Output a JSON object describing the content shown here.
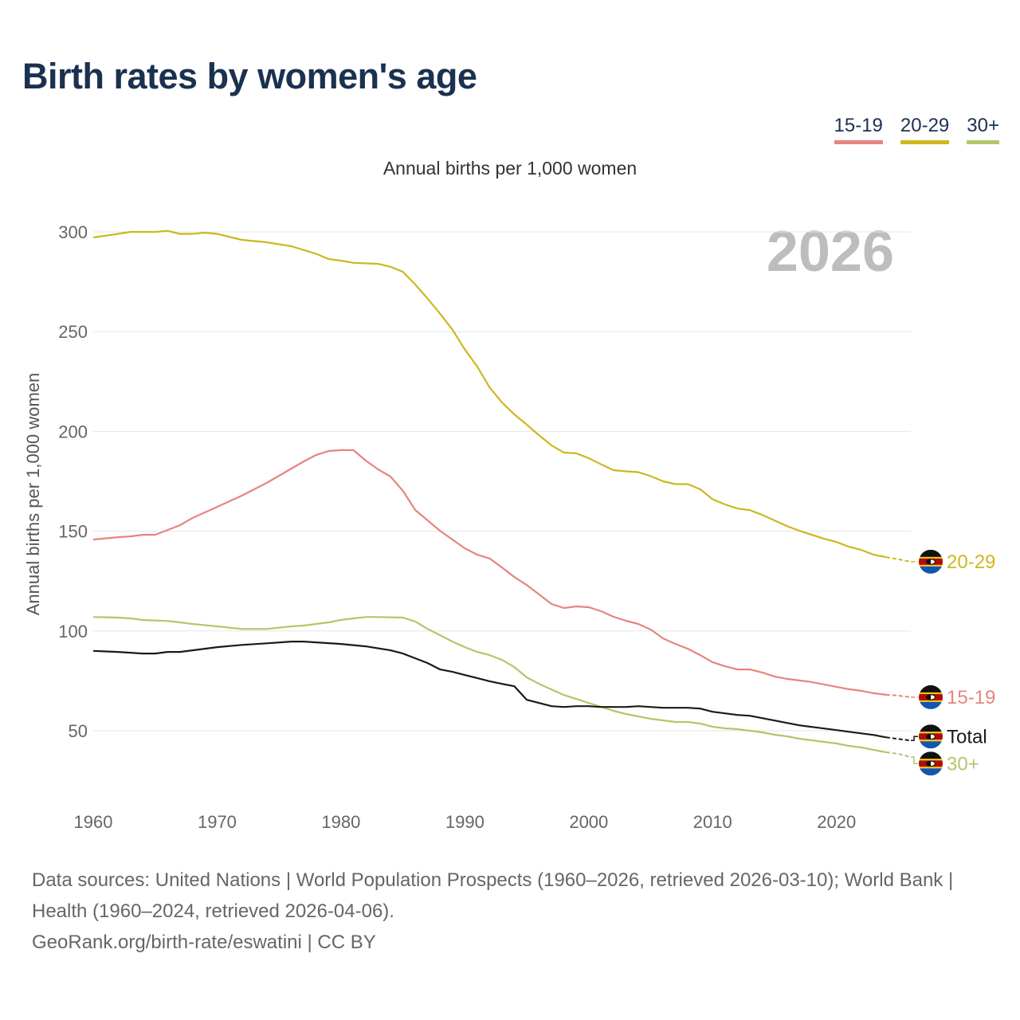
{
  "title": "Birth rates by women's age",
  "footer": {
    "sources": "Data sources: United Nations | World Population Prospects (1960–2026, retrieved 2026-03-10); World Bank | Health (1960–2024, retrieved 2026-04-06).",
    "credit": "GeoRank.org/birth-rate/eswatini | CC BY"
  },
  "chart_data": {
    "type": "line",
    "title": "Birth rates by women's age",
    "subtitle": "Annual births per 1,000 women",
    "xlabel": "",
    "ylabel": "Annual births per 1,000 women",
    "year_label": "2026",
    "xlim": [
      1960,
      2026
    ],
    "ylim": [
      25,
      310
    ],
    "xticks": [
      1960,
      1970,
      1980,
      1990,
      2000,
      2010,
      2020
    ],
    "yticks": [
      50,
      100,
      150,
      200,
      250,
      300
    ],
    "grid": true,
    "legend_position": "top-right",
    "projection_start": 2024,
    "end_marker": "eswatini-flag-icon",
    "series": [
      {
        "name": "15-19",
        "legend": true,
        "color": "#e8847f",
        "x": [
          1960,
          1962,
          1963,
          1964,
          1965,
          1966,
          1967,
          1968,
          1969,
          1970,
          1971,
          1972,
          1973,
          1974,
          1975,
          1976,
          1977,
          1978,
          1979,
          1980,
          1981,
          1982,
          1983,
          1984,
          1985,
          1986,
          1987,
          1988,
          1989,
          1990,
          1991,
          1992,
          1993,
          1994,
          1995,
          1996,
          1997,
          1998,
          1999,
          2000,
          2001,
          2002,
          2003,
          2004,
          2005,
          2006,
          2007,
          2008,
          2009,
          2010,
          2011,
          2012,
          2013,
          2014,
          2015,
          2016,
          2017,
          2018,
          2019,
          2020,
          2021,
          2022,
          2023,
          2024,
          2025,
          2026
        ],
        "y": [
          145.8,
          147,
          147.4,
          148.2,
          148.2,
          150.6,
          153,
          156.6,
          159.4,
          162.2,
          165,
          167.8,
          171,
          174.2,
          177.8,
          181.4,
          185,
          188.2,
          190.2,
          190.6,
          190.6,
          185.4,
          181,
          177.4,
          170.2,
          160.6,
          155.4,
          150.2,
          145.8,
          141.4,
          138.2,
          136.3,
          131.8,
          127,
          123,
          118.3,
          113.5,
          111.5,
          112.3,
          111.9,
          109.9,
          107.1,
          105.1,
          103.5,
          100.7,
          96.3,
          93.5,
          91.1,
          87.9,
          84.3,
          82.3,
          80.7,
          80.7,
          79.2,
          77.2,
          76,
          75.2,
          74.4,
          73.2,
          72,
          70.8,
          70,
          68.8,
          68,
          67.6,
          66.8
        ]
      },
      {
        "name": "20-29",
        "legend": true,
        "color": "#cdb81e",
        "x": [
          1960,
          1962,
          1963,
          1965,
          1966,
          1967,
          1968,
          1969,
          1970,
          1972,
          1974,
          1976,
          1978,
          1979,
          1980,
          1981,
          1983,
          1984,
          1985,
          1986,
          1987,
          1988,
          1989,
          1990,
          1991,
          1992,
          1993,
          1994,
          1995,
          1996,
          1997,
          1998,
          1999,
          2000,
          2001,
          2002,
          2003,
          2004,
          2005,
          2006,
          2007,
          2008,
          2009,
          2010,
          2011,
          2012,
          2013,
          2014,
          2015,
          2016,
          2017,
          2018,
          2019,
          2020,
          2021,
          2022,
          2023,
          2024,
          2025,
          2026
        ],
        "y": [
          297.2,
          299,
          300,
          300,
          300.5,
          299,
          299,
          299.6,
          299,
          296,
          294.8,
          292.8,
          289,
          286.4,
          285.6,
          284.5,
          284,
          282.5,
          280,
          273.6,
          266.5,
          259,
          251,
          241,
          232.5,
          222,
          214.5,
          208.5,
          203.4,
          198,
          193,
          189.4,
          189,
          186.6,
          183.5,
          180.6,
          180,
          179.6,
          177.6,
          175,
          173.6,
          173.6,
          171,
          166,
          163.4,
          161.4,
          160.6,
          158.2,
          155.4,
          152.6,
          150.2,
          148.2,
          146.2,
          144.6,
          142.2,
          140.6,
          138.2,
          137,
          135.9,
          134.7
        ]
      },
      {
        "name": "30+",
        "legend": true,
        "color": "#b3c66a",
        "x": [
          1960,
          1962,
          1963,
          1964,
          1966,
          1967,
          1968,
          1970,
          1972,
          1974,
          1976,
          1977,
          1978,
          1979,
          1980,
          1981,
          1982,
          1983,
          1985,
          1986,
          1987,
          1988,
          1989,
          1990,
          1991,
          1992,
          1993,
          1994,
          1995,
          1996,
          1997,
          1998,
          1999,
          2000,
          2001,
          2002,
          2003,
          2004,
          2005,
          2006,
          2007,
          2008,
          2009,
          2010,
          2011,
          2012,
          2013,
          2014,
          2015,
          2016,
          2017,
          2018,
          2019,
          2020,
          2021,
          2022,
          2023,
          2024,
          2025,
          2026
        ],
        "y": [
          107,
          106.7,
          106.3,
          105.5,
          105,
          104.3,
          103.5,
          102.3,
          101,
          101,
          102.3,
          102.7,
          103.5,
          104.3,
          105.5,
          106.3,
          107,
          107,
          106.7,
          104.7,
          101,
          97.9,
          94.7,
          91.9,
          89.5,
          87.9,
          85.5,
          81.9,
          76.7,
          73.5,
          70.7,
          67.9,
          65.9,
          63.9,
          62,
          60,
          58.4,
          57.2,
          56,
          55.2,
          54.4,
          54.4,
          53.6,
          52,
          51.2,
          50.8,
          50,
          49.2,
          48,
          47.2,
          46,
          45.2,
          44.4,
          43.6,
          42.4,
          41.6,
          40.4,
          39.2,
          38.4,
          36.8
        ]
      },
      {
        "name": "Total",
        "legend": false,
        "color": "#1a1a1a",
        "x": [
          1960,
          1962,
          1964,
          1965,
          1966,
          1967,
          1968,
          1969,
          1970,
          1972,
          1974,
          1976,
          1977,
          1978,
          1980,
          1982,
          1984,
          1985,
          1986,
          1987,
          1988,
          1989,
          1990,
          1991,
          1992,
          1993,
          1994,
          1995,
          1996,
          1997,
          1998,
          1999,
          2000,
          2001,
          2002,
          2003,
          2004,
          2005,
          2006,
          2007,
          2008,
          2009,
          2010,
          2011,
          2012,
          2013,
          2014,
          2015,
          2016,
          2017,
          2018,
          2019,
          2020,
          2021,
          2022,
          2023,
          2024,
          2025,
          2026
        ],
        "y": [
          90,
          89.5,
          88.7,
          88.7,
          89.5,
          89.5,
          90.3,
          91.1,
          91.9,
          93,
          93.8,
          94.7,
          94.7,
          94.3,
          93.5,
          92.3,
          90.3,
          88.7,
          86.3,
          83.9,
          80.7,
          79.5,
          77.9,
          76.4,
          74.8,
          73.5,
          72.3,
          65.5,
          63.9,
          62.3,
          61.9,
          62.3,
          62.3,
          61.9,
          61.9,
          61.9,
          62.3,
          61.9,
          61.5,
          61.5,
          61.5,
          61.1,
          59.5,
          58.7,
          57.9,
          57.5,
          56.3,
          55.1,
          53.9,
          52.7,
          51.9,
          51.1,
          50.3,
          49.5,
          48.7,
          47.9,
          46.7,
          45.9,
          45.1
        ]
      }
    ]
  }
}
